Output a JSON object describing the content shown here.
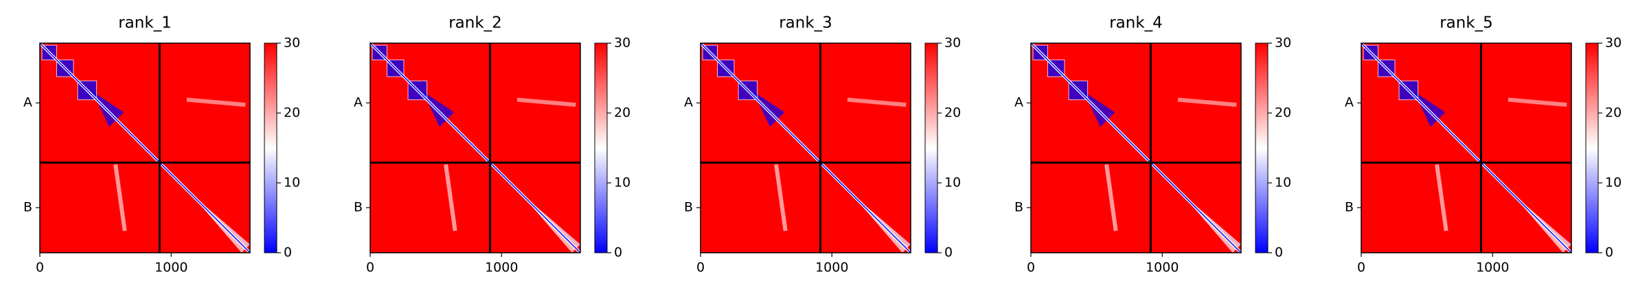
{
  "chart_data": [
    {
      "type": "heatmap",
      "title": "rank_1",
      "xlim": [
        0,
        1600
      ],
      "xticks": [
        0,
        1000
      ],
      "ylim": [
        0,
        1600
      ],
      "yticks": [
        {
          "value": 456,
          "label": "A"
        },
        {
          "value": 1256,
          "label": "B"
        }
      ],
      "boundaries": [
        912
      ],
      "clim": [
        0,
        30
      ],
      "cticks": [
        0,
        10,
        20,
        30
      ],
      "colors": [
        "#0000ff",
        "#ffffff",
        "#ff0000"
      ]
    },
    {
      "type": "heatmap",
      "title": "rank_2",
      "xlim": [
        0,
        1600
      ],
      "xticks": [
        0,
        1000
      ],
      "ylim": [
        0,
        1600
      ],
      "yticks": [
        {
          "value": 456,
          "label": "A"
        },
        {
          "value": 1256,
          "label": "B"
        }
      ],
      "boundaries": [
        912
      ],
      "clim": [
        0,
        30
      ],
      "cticks": [
        0,
        10,
        20,
        30
      ],
      "colors": [
        "#0000ff",
        "#ffffff",
        "#ff0000"
      ]
    },
    {
      "type": "heatmap",
      "title": "rank_3",
      "xlim": [
        0,
        1600
      ],
      "xticks": [
        0,
        1000
      ],
      "ylim": [
        0,
        1600
      ],
      "yticks": [
        {
          "value": 456,
          "label": "A"
        },
        {
          "value": 1256,
          "label": "B"
        }
      ],
      "boundaries": [
        912
      ],
      "clim": [
        0,
        30
      ],
      "cticks": [
        0,
        10,
        20,
        30
      ],
      "colors": [
        "#0000ff",
        "#ffffff",
        "#ff0000"
      ]
    },
    {
      "type": "heatmap",
      "title": "rank_4",
      "xlim": [
        0,
        1600
      ],
      "xticks": [
        0,
        1000
      ],
      "ylim": [
        0,
        1600
      ],
      "yticks": [
        {
          "value": 456,
          "label": "A"
        },
        {
          "value": 1256,
          "label": "B"
        }
      ],
      "boundaries": [
        912
      ],
      "clim": [
        0,
        30
      ],
      "cticks": [
        0,
        10,
        20,
        30
      ],
      "colors": [
        "#0000ff",
        "#ffffff",
        "#ff0000"
      ]
    },
    {
      "type": "heatmap",
      "title": "rank_5",
      "xlim": [
        0,
        1600
      ],
      "xticks": [
        0,
        1000
      ],
      "ylim": [
        0,
        1600
      ],
      "yticks": [
        {
          "value": 456,
          "label": "A"
        },
        {
          "value": 1256,
          "label": "B"
        }
      ],
      "boundaries": [
        912
      ],
      "clim": [
        0,
        30
      ],
      "cticks": [
        0,
        10,
        20,
        30
      ],
      "colors": [
        "#0000ff",
        "#ffffff",
        "#ff0000"
      ]
    }
  ]
}
